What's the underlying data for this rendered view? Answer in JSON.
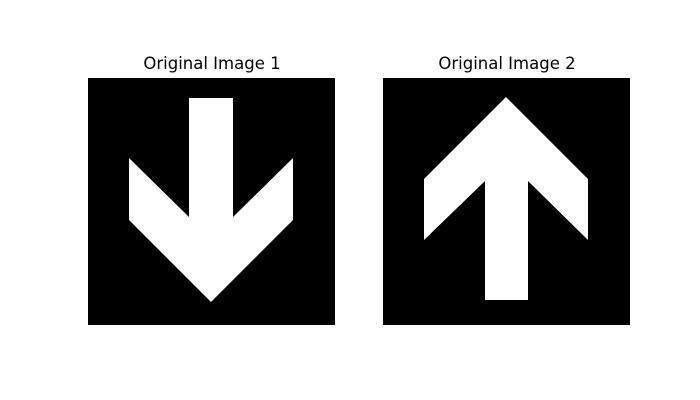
{
  "figure": {
    "background_color": "#ffffff",
    "panels": [
      {
        "title": "Original Image 1",
        "image_background": "#000000",
        "shape_color": "#ffffff",
        "shape_icon": "arrow-down-icon"
      },
      {
        "title": "Original Image 2",
        "image_background": "#000000",
        "shape_color": "#ffffff",
        "shape_icon": "arrow-up-icon"
      }
    ]
  }
}
